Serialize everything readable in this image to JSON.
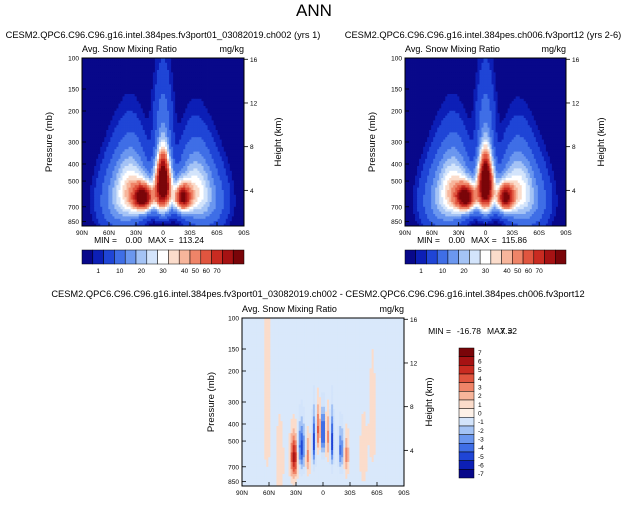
{
  "figure": {
    "title": "ANN"
  },
  "colors": {
    "abs_scale": [
      "#08088a",
      "#0c1fb6",
      "#1f45d6",
      "#3f6ee6",
      "#6b97ef",
      "#a4c3f5",
      "#d3e4fb",
      "#ffffff",
      "#fbdccb",
      "#f7b59b",
      "#ef8468",
      "#e0553f",
      "#c92b21",
      "#a61213",
      "#7a0509"
    ],
    "diff_scale": [
      "#08088a",
      "#0c1fb6",
      "#1f45d6",
      "#3f6ee6",
      "#6b97ef",
      "#a4c3f5",
      "#d3e4fb",
      "#fdf1e8",
      "#fbdccb",
      "#f7b59b",
      "#ef8468",
      "#e0553f",
      "#c92b21",
      "#a61213",
      "#7a0509"
    ],
    "diff_background": "#d9e8fb"
  },
  "chart_data": [
    {
      "type": "heatmap",
      "title": "CESM2.QPC6.C96.C96.g16.intel.384pes.fv3port01_03082019.ch002 (yrs 1)",
      "subtitle_left": "Avg. Snow Mixing Ratio",
      "units": "mg/kg",
      "xlabel": "",
      "ylabel": "Pressure (mb)",
      "ylabel_right": "Height (km)",
      "x_ticks": [
        "90N",
        "60N",
        "30N",
        "0",
        "30S",
        "60S",
        "90S"
      ],
      "y_ticks": [
        100,
        150,
        200,
        300,
        400,
        500,
        700,
        850
      ],
      "y_right_ticks": [
        16,
        12,
        8,
        4
      ],
      "ylim": [
        900,
        100
      ],
      "xlim": [
        90,
        -90
      ],
      "min": "0.00",
      "max": "113.24",
      "min_label": "MIN =",
      "max_label": "MAX =",
      "colorbar_levels": [
        "1",
        "10",
        "20",
        "30",
        "40",
        "50",
        "60",
        "70"
      ],
      "features": [
        {
          "lat": 0,
          "p": 550,
          "amp": 100,
          "sx": 6,
          "sy": 110
        },
        {
          "lat": 0,
          "p": 420,
          "amp": 40,
          "sx": 4,
          "sy": 80
        },
        {
          "lat": 22,
          "p": 620,
          "amp": 90,
          "sx": 7,
          "sy": 70
        },
        {
          "lat": -22,
          "p": 620,
          "amp": 75,
          "sx": 6,
          "sy": 70
        },
        {
          "lat": 35,
          "p": 560,
          "amp": 30,
          "sx": 11,
          "sy": 150
        },
        {
          "lat": -35,
          "p": 560,
          "amp": 25,
          "sx": 11,
          "sy": 150
        },
        {
          "lat": 50,
          "p": 650,
          "amp": 12,
          "sx": 14,
          "sy": 180
        },
        {
          "lat": -50,
          "p": 650,
          "amp": 10,
          "sx": 14,
          "sy": 180
        }
      ]
    },
    {
      "type": "heatmap",
      "title": "CESM2.QPC6.C96.C96.g16.intel.384pes.ch006.fv3port12 (yrs 2-6)",
      "subtitle_left": "Avg. Snow Mixing Ratio",
      "units": "mg/kg",
      "xlabel": "",
      "ylabel": "Pressure (mb)",
      "ylabel_right": "Height (km)",
      "x_ticks": [
        "90N",
        "60N",
        "30N",
        "0",
        "30S",
        "60S",
        "90S"
      ],
      "y_ticks": [
        100,
        150,
        200,
        300,
        400,
        500,
        700,
        850
      ],
      "y_right_ticks": [
        16,
        12,
        8,
        4
      ],
      "ylim": [
        900,
        100
      ],
      "xlim": [
        90,
        -90
      ],
      "min": "0.00",
      "max": "115.86",
      "min_label": "MIN =",
      "max_label": "MAX =",
      "colorbar_levels": [
        "1",
        "10",
        "20",
        "30",
        "40",
        "50",
        "60",
        "70"
      ],
      "features": [
        {
          "lat": 0,
          "p": 550,
          "amp": 102,
          "sx": 6,
          "sy": 110
        },
        {
          "lat": 0,
          "p": 420,
          "amp": 42,
          "sx": 4,
          "sy": 80
        },
        {
          "lat": 22,
          "p": 620,
          "amp": 88,
          "sx": 7,
          "sy": 70
        },
        {
          "lat": -22,
          "p": 620,
          "amp": 78,
          "sx": 6,
          "sy": 70
        },
        {
          "lat": 35,
          "p": 560,
          "amp": 30,
          "sx": 11,
          "sy": 150
        },
        {
          "lat": -35,
          "p": 560,
          "amp": 26,
          "sx": 11,
          "sy": 150
        },
        {
          "lat": 50,
          "p": 650,
          "amp": 12,
          "sx": 14,
          "sy": 180
        },
        {
          "lat": -50,
          "p": 650,
          "amp": 10,
          "sx": 14,
          "sy": 180
        }
      ]
    },
    {
      "type": "heatmap",
      "title": "CESM2.QPC6.C96.C96.g16.intel.384pes.fv3port01_03082019.ch002 - CESM2.QPC6.C96.C96.g16.intel.384pes.ch006.fv3port12",
      "subtitle_left": "Avg. Snow Mixing Ratio",
      "units": "mg/kg",
      "xlabel": "",
      "ylabel": "Pressure (mb)",
      "ylabel_right": "Height (km)",
      "x_ticks": [
        "90N",
        "60N",
        "30N",
        "0",
        "30S",
        "60S",
        "90S"
      ],
      "y_ticks": [
        100,
        150,
        200,
        300,
        400,
        500,
        700,
        850
      ],
      "y_right_ticks": [
        16,
        12,
        8,
        4
      ],
      "ylim": [
        900,
        100
      ],
      "xlim": [
        90,
        -90
      ],
      "min": "-16.78",
      "max": "7.32",
      "min_label": "MIN =",
      "max_label": "MAX =",
      "colorbar_levels": [
        "-7",
        "-6",
        "-5",
        "-4",
        "-3",
        "-2",
        "-1",
        "0",
        "1",
        "2",
        "3",
        "4",
        "5",
        "6",
        "7"
      ],
      "features": [
        {
          "lat": 0,
          "p": 450,
          "amp": -6,
          "sx": 1.5,
          "sy": 90
        },
        {
          "lat": 10,
          "p": 500,
          "amp": -5,
          "sx": 1.5,
          "sy": 120
        },
        {
          "lat": -10,
          "p": 500,
          "amp": -5,
          "sx": 1.5,
          "sy": 120
        },
        {
          "lat": 5,
          "p": 430,
          "amp": 4,
          "sx": 1.5,
          "sy": 90
        },
        {
          "lat": -5,
          "p": 470,
          "amp": 3,
          "sx": 1.5,
          "sy": 100
        },
        {
          "lat": 24,
          "p": 550,
          "amp": -5,
          "sx": 3,
          "sy": 120
        },
        {
          "lat": 17,
          "p": 600,
          "amp": 3,
          "sx": 2,
          "sy": 110
        },
        {
          "lat": 32,
          "p": 620,
          "amp": 6,
          "sx": 3,
          "sy": 120
        },
        {
          "lat": -20,
          "p": 560,
          "amp": -4,
          "sx": 2,
          "sy": 110
        },
        {
          "lat": -26,
          "p": 600,
          "amp": 3,
          "sx": 2,
          "sy": 110
        },
        {
          "lat": 48,
          "p": 650,
          "amp": 1.5,
          "sx": 3,
          "sy": 200
        },
        {
          "lat": -45,
          "p": 600,
          "amp": 1.2,
          "sx": 3,
          "sy": 200
        },
        {
          "lat": 62,
          "p": 300,
          "amp": 1.2,
          "sx": 3,
          "sy": 300
        },
        {
          "lat": -55,
          "p": 400,
          "amp": 1.1,
          "sx": 3,
          "sy": 200
        }
      ]
    }
  ]
}
